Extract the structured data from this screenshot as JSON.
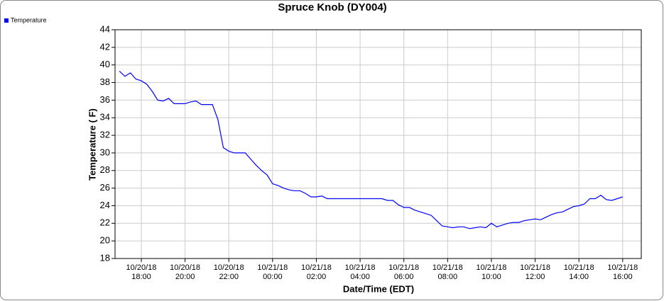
{
  "chart_data": {
    "type": "line",
    "title": "Spruce Knob (DY004)",
    "x_label": "Date/Time (EDT)",
    "y_label": "Temperature ( F)",
    "legend": "top-left",
    "grid": true,
    "xlim": [
      "10/20/18 16:48",
      "10/21/18 16:51"
    ],
    "xticks": [
      "10/20/18 18:00",
      "10/20/18 20:00",
      "10/20/18 22:00",
      "10/21/18 00:00",
      "10/21/18 02:00",
      "10/21/18 04:00",
      "10/21/18 06:00",
      "10/21/18 08:00",
      "10/21/18 10:00",
      "10/21/18 12:00",
      "10/21/18 14:00",
      "10/21/18 16:00"
    ],
    "ylim": [
      18,
      44
    ],
    "yticks": [
      18,
      20,
      22,
      24,
      26,
      28,
      30,
      32,
      34,
      36,
      38,
      40,
      42,
      44
    ],
    "x": [
      "10/20/18 17:00",
      "10/20/18 17:15",
      "10/20/18 17:30",
      "10/20/18 17:45",
      "10/20/18 18:00",
      "10/20/18 18:15",
      "10/20/18 18:30",
      "10/20/18 18:45",
      "10/20/18 19:00",
      "10/20/18 19:15",
      "10/20/18 19:30",
      "10/20/18 19:45",
      "10/20/18 20:00",
      "10/20/18 20:15",
      "10/20/18 20:30",
      "10/20/18 20:45",
      "10/20/18 21:00",
      "10/20/18 21:15",
      "10/20/18 21:30",
      "10/20/18 21:45",
      "10/20/18 22:00",
      "10/20/18 22:15",
      "10/20/18 22:30",
      "10/20/18 22:45",
      "10/20/18 23:00",
      "10/20/18 23:15",
      "10/20/18 23:30",
      "10/20/18 23:45",
      "10/21/18 00:00",
      "10/21/18 00:15",
      "10/21/18 00:30",
      "10/21/18 00:45",
      "10/21/18 01:00",
      "10/21/18 01:15",
      "10/21/18 01:30",
      "10/21/18 01:45",
      "10/21/18 02:00",
      "10/21/18 02:15",
      "10/21/18 02:30",
      "10/21/18 02:45",
      "10/21/18 03:00",
      "10/21/18 03:15",
      "10/21/18 03:30",
      "10/21/18 03:45",
      "10/21/18 04:00",
      "10/21/18 04:15",
      "10/21/18 04:30",
      "10/21/18 04:45",
      "10/21/18 05:00",
      "10/21/18 05:15",
      "10/21/18 05:30",
      "10/21/18 05:45",
      "10/21/18 06:00",
      "10/21/18 06:15",
      "10/21/18 06:30",
      "10/21/18 06:45",
      "10/21/18 07:00",
      "10/21/18 07:15",
      "10/21/18 07:30",
      "10/21/18 07:45",
      "10/21/18 08:00",
      "10/21/18 08:15",
      "10/21/18 08:30",
      "10/21/18 08:45",
      "10/21/18 09:00",
      "10/21/18 09:15",
      "10/21/18 09:30",
      "10/21/18 09:45",
      "10/21/18 10:00",
      "10/21/18 10:15",
      "10/21/18 10:30",
      "10/21/18 10:45",
      "10/21/18 11:00",
      "10/21/18 11:15",
      "10/21/18 11:30",
      "10/21/18 11:45",
      "10/21/18 12:00",
      "10/21/18 12:15",
      "10/21/18 12:30",
      "10/21/18 12:45",
      "10/21/18 13:00",
      "10/21/18 13:15",
      "10/21/18 13:30",
      "10/21/18 13:45",
      "10/21/18 14:00",
      "10/21/18 14:15",
      "10/21/18 14:30",
      "10/21/18 14:45",
      "10/21/18 15:00",
      "10/21/18 15:15",
      "10/21/18 15:30",
      "10/21/18 15:45",
      "10/21/18 16:00"
    ],
    "series": [
      {
        "name": "Temperature",
        "color": "#0000ff",
        "values": [
          39.3,
          38.7,
          39.1,
          38.4,
          38.2,
          37.8,
          37.0,
          36.0,
          35.9,
          36.2,
          35.6,
          35.6,
          35.6,
          35.8,
          35.9,
          35.5,
          35.5,
          35.5,
          33.8,
          30.6,
          30.2,
          30.0,
          30.0,
          30.0,
          29.3,
          28.6,
          28.0,
          27.5,
          26.5,
          26.3,
          26.0,
          25.8,
          25.7,
          25.7,
          25.4,
          25.0,
          25.0,
          25.1,
          24.8,
          24.8,
          24.8,
          24.8,
          24.8,
          24.8,
          24.8,
          24.8,
          24.8,
          24.8,
          24.8,
          24.6,
          24.6,
          24.1,
          23.8,
          23.8,
          23.5,
          23.3,
          23.1,
          22.9,
          22.3,
          21.7,
          21.6,
          21.5,
          21.6,
          21.6,
          21.4,
          21.5,
          21.6,
          21.5,
          22.0,
          21.6,
          21.8,
          22.0,
          22.1,
          22.1,
          22.3,
          22.4,
          22.5,
          22.4,
          22.7,
          23.0,
          23.2,
          23.3,
          23.6,
          23.9,
          24.0,
          24.2,
          24.8,
          24.8,
          25.2,
          24.7,
          24.6,
          24.8,
          25.0
        ]
      }
    ]
  }
}
